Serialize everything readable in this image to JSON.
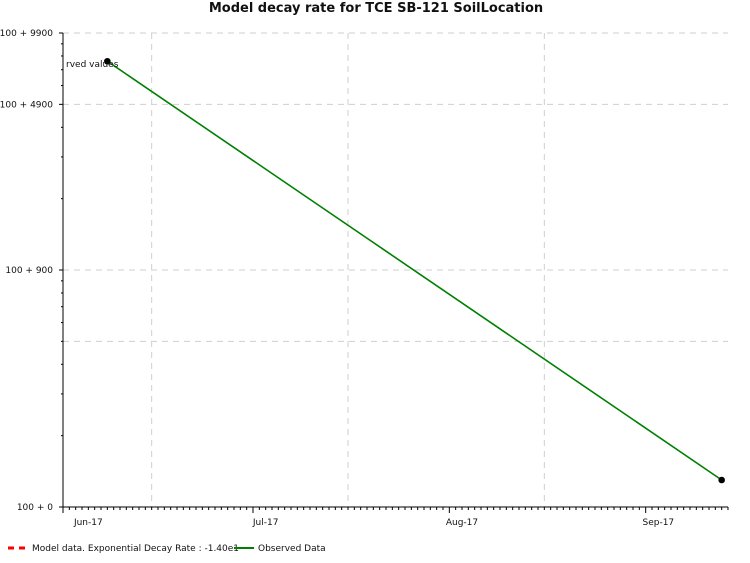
{
  "chart_data": {
    "type": "line",
    "title": "Model decay rate for  TCE SB-121 SoilLocation",
    "xlabel": "",
    "ylabel": "",
    "y_scale": "log",
    "grid": true,
    "legend_position": "bottom-left",
    "x_ticks": [
      "Jun-17",
      "Jul-17",
      "Aug-17",
      "Sep-17"
    ],
    "y_ticks": [
      "100 + 0",
      "100 + 900",
      "100 + 4900",
      "100 + 9900"
    ],
    "annotation": "rved values",
    "series": [
      {
        "name": "Observed Data",
        "color": "#008000",
        "points": [
          {
            "x": "2017-06-08",
            "y": 7600
          },
          {
            "x": "2017-09-13",
            "y": 130
          }
        ]
      },
      {
        "name": "Model data. Exponential Decay Rate : -1.40e1",
        "color": "#ff0000",
        "style": "dashed",
        "points": []
      }
    ]
  }
}
